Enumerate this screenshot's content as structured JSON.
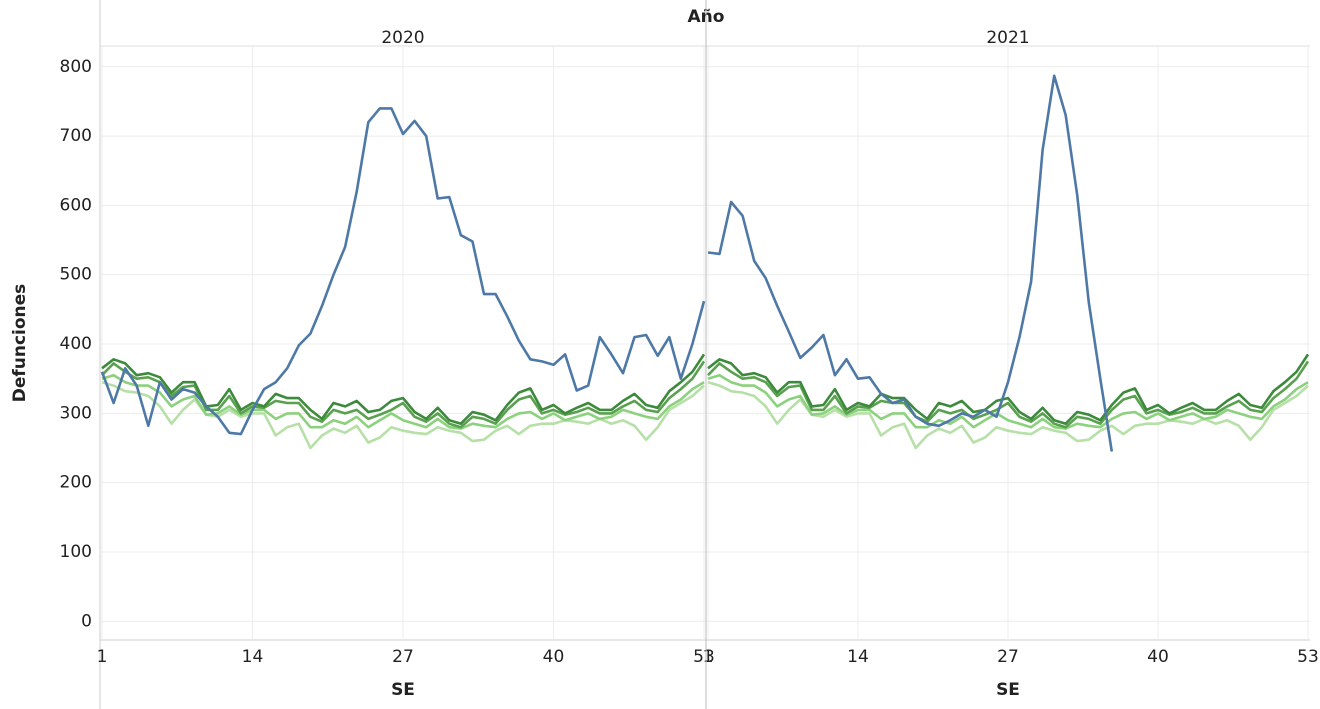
{
  "header": "Año",
  "y_label": "Defunciones",
  "chart_data": [
    {
      "type": "line",
      "title": "2020",
      "x_label": "SE",
      "x": [
        1,
        2,
        3,
        4,
        5,
        6,
        7,
        8,
        9,
        10,
        11,
        12,
        13,
        14,
        15,
        16,
        17,
        18,
        19,
        20,
        21,
        22,
        23,
        24,
        25,
        26,
        27,
        28,
        29,
        30,
        31,
        32,
        33,
        34,
        35,
        36,
        37,
        38,
        39,
        40,
        41,
        42,
        43,
        44,
        45,
        46,
        47,
        48,
        49,
        50,
        51,
        52,
        53
      ],
      "xlim": [
        1,
        53
      ],
      "xticks": [
        1,
        14,
        27,
        40,
        53
      ],
      "ylim": [
        -27,
        830
      ],
      "yticks": [
        0,
        100,
        200,
        300,
        400,
        500,
        600,
        700,
        800
      ],
      "grid": true,
      "series": [
        {
          "color": "#b6e0a8",
          "values": [
            345,
            340,
            332,
            330,
            325,
            310,
            285,
            305,
            320,
            298,
            295,
            305,
            295,
            300,
            300,
            268,
            280,
            285,
            250,
            268,
            278,
            272,
            282,
            258,
            265,
            280,
            275,
            272,
            270,
            280,
            275,
            272,
            260,
            262,
            275,
            282,
            270,
            282,
            285,
            285,
            290,
            288,
            285,
            292,
            285,
            290,
            282,
            262,
            280,
            305,
            315,
            325,
            340
          ]
        },
        {
          "color": "#8cd17d",
          "values": [
            350,
            355,
            345,
            340,
            340,
            330,
            310,
            320,
            325,
            298,
            300,
            310,
            298,
            305,
            305,
            292,
            300,
            300,
            280,
            280,
            290,
            285,
            295,
            280,
            290,
            300,
            290,
            285,
            280,
            292,
            280,
            278,
            285,
            282,
            280,
            292,
            300,
            302,
            292,
            300,
            290,
            295,
            300,
            292,
            295,
            305,
            300,
            295,
            292,
            310,
            320,
            335,
            345
          ]
        },
        {
          "color": "#59a14f",
          "values": [
            355,
            372,
            360,
            350,
            352,
            345,
            325,
            338,
            340,
            305,
            305,
            325,
            300,
            310,
            308,
            318,
            315,
            315,
            295,
            288,
            305,
            300,
            305,
            292,
            298,
            305,
            315,
            295,
            288,
            300,
            285,
            280,
            295,
            292,
            285,
            305,
            320,
            325,
            300,
            305,
            298,
            302,
            308,
            300,
            300,
            310,
            318,
            305,
            302,
            322,
            335,
            350,
            375
          ]
        },
        {
          "color": "#3d8a3d",
          "values": [
            365,
            378,
            372,
            355,
            358,
            352,
            330,
            345,
            345,
            310,
            312,
            335,
            305,
            315,
            310,
            328,
            322,
            322,
            305,
            292,
            315,
            310,
            318,
            302,
            305,
            318,
            322,
            302,
            292,
            308,
            290,
            285,
            302,
            298,
            290,
            312,
            330,
            336,
            305,
            312,
            300,
            308,
            315,
            305,
            305,
            318,
            328,
            312,
            308,
            332,
            345,
            360,
            385
          ]
        },
        {
          "color": "#4e79a7",
          "values": [
            360,
            315,
            365,
            340,
            282,
            345,
            320,
            335,
            330,
            310,
            295,
            272,
            270,
            305,
            335,
            345,
            365,
            398,
            415,
            455,
            500,
            540,
            620,
            720,
            740,
            740,
            703,
            722,
            700,
            610,
            612,
            557,
            548,
            472,
            472,
            440,
            405,
            378,
            375,
            370,
            385,
            333,
            340,
            410,
            385,
            358,
            410,
            413,
            383,
            410,
            350,
            400,
            462
          ]
        }
      ]
    },
    {
      "type": "line",
      "title": "2021",
      "x_label": "SE",
      "x": [
        1,
        2,
        3,
        4,
        5,
        6,
        7,
        8,
        9,
        10,
        11,
        12,
        13,
        14,
        15,
        16,
        17,
        18,
        19,
        20,
        21,
        22,
        23,
        24,
        25,
        26,
        27,
        28,
        29,
        30,
        31,
        32,
        33,
        34,
        35,
        36,
        37,
        38,
        39,
        40,
        41,
        42,
        43,
        44,
        45,
        46,
        47,
        48,
        49,
        50,
        51,
        52,
        53
      ],
      "xlim": [
        1,
        53
      ],
      "xticks": [
        1,
        14,
        27,
        40,
        53
      ],
      "ylim": [
        -27,
        830
      ],
      "yticks": [
        0,
        100,
        200,
        300,
        400,
        500,
        600,
        700,
        800
      ],
      "grid": true,
      "series": [
        {
          "color": "#b6e0a8",
          "values": [
            345,
            340,
            332,
            330,
            325,
            310,
            285,
            305,
            320,
            298,
            295,
            305,
            295,
            300,
            300,
            268,
            280,
            285,
            250,
            268,
            278,
            272,
            282,
            258,
            265,
            280,
            275,
            272,
            270,
            280,
            275,
            272,
            260,
            262,
            275,
            282,
            270,
            282,
            285,
            285,
            290,
            288,
            285,
            292,
            285,
            290,
            282,
            262,
            280,
            305,
            315,
            325,
            340
          ]
        },
        {
          "color": "#8cd17d",
          "values": [
            350,
            355,
            345,
            340,
            340,
            330,
            310,
            320,
            325,
            298,
            300,
            310,
            298,
            305,
            305,
            292,
            300,
            300,
            280,
            280,
            290,
            285,
            295,
            280,
            290,
            300,
            290,
            285,
            280,
            292,
            280,
            278,
            285,
            282,
            280,
            292,
            300,
            302,
            292,
            300,
            290,
            295,
            300,
            292,
            295,
            305,
            300,
            295,
            292,
            310,
            320,
            335,
            345
          ]
        },
        {
          "color": "#59a14f",
          "values": [
            355,
            372,
            360,
            350,
            352,
            345,
            325,
            338,
            340,
            305,
            305,
            325,
            300,
            310,
            308,
            318,
            315,
            315,
            295,
            288,
            305,
            300,
            305,
            292,
            298,
            305,
            315,
            295,
            288,
            300,
            285,
            280,
            295,
            292,
            285,
            305,
            320,
            325,
            300,
            305,
            298,
            302,
            308,
            300,
            300,
            310,
            318,
            305,
            302,
            322,
            335,
            350,
            375
          ]
        },
        {
          "color": "#3d8a3d",
          "values": [
            365,
            378,
            372,
            355,
            358,
            352,
            330,
            345,
            345,
            310,
            312,
            335,
            305,
            315,
            310,
            328,
            322,
            322,
            305,
            292,
            315,
            310,
            318,
            302,
            305,
            318,
            322,
            302,
            292,
            308,
            290,
            285,
            302,
            298,
            290,
            312,
            330,
            336,
            305,
            312,
            300,
            308,
            315,
            305,
            305,
            318,
            328,
            312,
            308,
            332,
            345,
            360,
            385
          ]
        },
        {
          "color": "#4e79a7",
          "values": [
            532,
            530,
            605,
            585,
            520,
            495,
            455,
            418,
            380,
            395,
            413,
            355,
            378,
            350,
            352,
            328,
            315,
            320,
            295,
            285,
            282,
            290,
            300,
            295,
            305,
            295,
            345,
            410,
            490,
            680,
            787,
            730,
            615,
            460,
            350,
            245,
            null,
            null,
            null,
            null,
            null,
            null,
            null,
            null,
            null,
            null,
            null,
            null,
            null,
            null,
            null,
            null,
            null
          ]
        }
      ]
    }
  ]
}
